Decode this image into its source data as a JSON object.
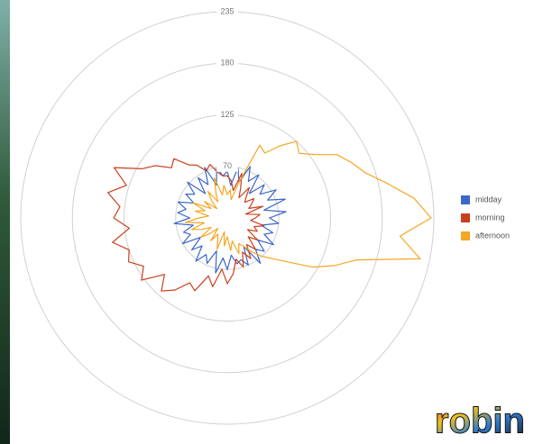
{
  "chart_data": {
    "type": "radar",
    "rlim": [
      15,
      235
    ],
    "rticks": [
      70,
      125,
      180,
      235
    ],
    "grid": true,
    "legend": "right",
    "series": [
      {
        "name": "midday",
        "color": "#3a67c9",
        "values": [
          65,
          50,
          70,
          55,
          75,
          60,
          72,
          50,
          68,
          58,
          75,
          62,
          80,
          55,
          78,
          60,
          70,
          52,
          66,
          58,
          72,
          55,
          68,
          60,
          75,
          50,
          70,
          62,
          65,
          55,
          70,
          58,
          75,
          52,
          68,
          60,
          72,
          55,
          66,
          50,
          70,
          58,
          64,
          52,
          72,
          55,
          68,
          60,
          70,
          54,
          66,
          58,
          72,
          50,
          68,
          56,
          74,
          52,
          70,
          60
        ]
      },
      {
        "name": "morning",
        "color": "#c9401d",
        "values": [
          60,
          55,
          45,
          65,
          50,
          40,
          55,
          45,
          40,
          50,
          45,
          40,
          55,
          35,
          50,
          45,
          40,
          55,
          45,
          50,
          40,
          55,
          45,
          60,
          50,
          65,
          55,
          70,
          60,
          75,
          85,
          70,
          90,
          80,
          100,
          95,
          110,
          120,
          105,
          128,
          118,
          130,
          125,
          140,
          120,
          136,
          130,
          145,
          128,
          147,
          120,
          110,
          95,
          100,
          85,
          80,
          70,
          75,
          65,
          60
        ]
      },
      {
        "name": "afternoon",
        "color": "#f5a623",
        "values": [
          40,
          45,
          35,
          55,
          100,
          95,
          110,
          125,
          118,
          130,
          150,
          160,
          170,
          190,
          215,
          232,
          200,
          225,
          160,
          140,
          120,
          95,
          80,
          70,
          60,
          50,
          45,
          55,
          40,
          50,
          35,
          45,
          30,
          50,
          40,
          35,
          45,
          30,
          40,
          50,
          35,
          45,
          55,
          40,
          60,
          45,
          35,
          50,
          40,
          55,
          35,
          45,
          30,
          40,
          50,
          35,
          45,
          60,
          40,
          50
        ]
      }
    ]
  },
  "logo": "robin"
}
